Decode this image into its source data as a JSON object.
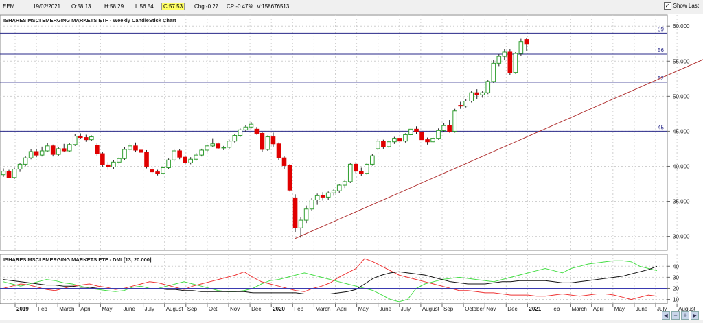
{
  "header": {
    "symbol": "EEM",
    "date": "19/02/2021",
    "open": "O:58.13",
    "high": "H:58.29",
    "low": "L:56.54",
    "close": "C:57.53",
    "change": "Chg:-0.27",
    "change_pct": "CP:-0.47%",
    "volume": "V:158676513",
    "show_last_label": "Show Last",
    "show_last_checked": true
  },
  "colors": {
    "up": "#2f9e2f",
    "down": "#e00000",
    "hline": "#2a2a8a",
    "trend": "#b03030",
    "plus_di": "#44dd44",
    "minus_di": "#ee3333",
    "adx": "#111111",
    "threshold": "#3a3ab0"
  },
  "chart_data": [
    {
      "type": "candlestick",
      "title": "ISHARES MSCI EMERGING MARKETS ETF - Weekly CandleStick Chart",
      "ylim": [
        28,
        61
      ],
      "yticks": [
        "60.000",
        "55.000",
        "50.000",
        "45.000",
        "40.000",
        "35.000",
        "30.000"
      ],
      "ytick_values": [
        60,
        55,
        50,
        45,
        40,
        35,
        30
      ],
      "hlines": [
        {
          "value": 59,
          "label": "59"
        },
        {
          "value": 56,
          "label": "56"
        },
        {
          "value": 52,
          "label": "52"
        },
        {
          "value": 45,
          "label": "45"
        }
      ],
      "trendline": {
        "from": [
          53,
          29.7
        ],
        "to": [
          138,
          59
        ]
      },
      "x_labels": [
        "2019",
        "Feb",
        "March",
        "April",
        "May",
        "June",
        "July",
        "August",
        "Sep",
        "Oct",
        "Nov",
        "Dec",
        "2020",
        "Feb",
        "March",
        "April",
        "May",
        "June",
        "July",
        "August",
        "Sep",
        "October",
        "Nov",
        "Dec",
        "2021",
        "Feb",
        "March",
        "April",
        "May",
        "June",
        "July",
        "August"
      ],
      "candles": [
        [
          38.8,
          39.7,
          38.5,
          39.3
        ],
        [
          39.3,
          39.5,
          38.3,
          38.4
        ],
        [
          38.4,
          39.8,
          38.2,
          39.6
        ],
        [
          39.6,
          40.5,
          39.2,
          40.3
        ],
        [
          40.3,
          41.5,
          40.0,
          41.2
        ],
        [
          41.2,
          42.4,
          41.0,
          42.1
        ],
        [
          42.1,
          42.5,
          41.3,
          41.6
        ],
        [
          41.6,
          42.8,
          41.4,
          42.2
        ],
        [
          42.2,
          43.3,
          42.0,
          42.9
        ],
        [
          42.9,
          43.1,
          41.4,
          41.7
        ],
        [
          41.7,
          42.7,
          41.5,
          42.5
        ],
        [
          42.5,
          43.2,
          42.0,
          42.2
        ],
        [
          42.2,
          43.3,
          42.1,
          43.1
        ],
        [
          43.1,
          44.6,
          42.9,
          44.3
        ],
        [
          44.3,
          44.7,
          43.9,
          44.1
        ],
        [
          44.1,
          44.5,
          43.5,
          43.8
        ],
        [
          43.8,
          44.4,
          43.6,
          44.2
        ],
        [
          43.0,
          43.3,
          41.5,
          41.8
        ],
        [
          41.8,
          42.0,
          39.9,
          40.2
        ],
        [
          40.2,
          40.6,
          39.5,
          39.9
        ],
        [
          39.9,
          40.9,
          39.6,
          40.6
        ],
        [
          40.6,
          41.3,
          40.3,
          41.1
        ],
        [
          41.1,
          42.7,
          40.9,
          42.4
        ],
        [
          42.4,
          43.3,
          42.1,
          42.9
        ],
        [
          42.9,
          43.4,
          42.0,
          42.3
        ],
        [
          42.3,
          42.6,
          41.5,
          42.0
        ],
        [
          42.0,
          42.3,
          39.7,
          40.0
        ],
        [
          39.5,
          40.0,
          38.8,
          39.2
        ],
        [
          39.2,
          39.5,
          38.7,
          39.0
        ],
        [
          39.0,
          40.0,
          38.8,
          39.8
        ],
        [
          39.8,
          41.1,
          39.6,
          40.9
        ],
        [
          40.9,
          42.5,
          40.7,
          42.2
        ],
        [
          42.2,
          42.4,
          41.0,
          41.3
        ],
        [
          41.3,
          41.6,
          40.2,
          40.5
        ],
        [
          40.5,
          41.3,
          40.3,
          41.0
        ],
        [
          41.0,
          41.9,
          40.8,
          41.6
        ],
        [
          41.6,
          42.5,
          41.4,
          42.3
        ],
        [
          42.3,
          43.1,
          42.1,
          42.9
        ],
        [
          42.9,
          44.0,
          42.7,
          43.2
        ],
        [
          43.2,
          43.4,
          42.4,
          42.6
        ],
        [
          42.6,
          42.9,
          42.3,
          42.7
        ],
        [
          42.7,
          43.8,
          42.5,
          43.6
        ],
        [
          43.6,
          44.6,
          43.4,
          44.4
        ],
        [
          44.4,
          45.4,
          44.2,
          45.2
        ],
        [
          45.2,
          45.9,
          44.9,
          45.6
        ],
        [
          45.6,
          46.3,
          45.4,
          46.0
        ],
        [
          45.3,
          45.6,
          44.5,
          44.7
        ],
        [
          44.7,
          44.9,
          42.1,
          42.4
        ],
        [
          42.4,
          44.4,
          42.2,
          44.2
        ],
        [
          44.2,
          44.8,
          42.8,
          43.2
        ],
        [
          43.2,
          43.4,
          40.9,
          41.2
        ],
        [
          41.2,
          41.4,
          39.6,
          40.1
        ],
        [
          40.1,
          40.3,
          36.4,
          36.6
        ],
        [
          35.5,
          36.0,
          30.6,
          31.2
        ],
        [
          31.2,
          32.8,
          29.8,
          32.3
        ],
        [
          32.3,
          34.4,
          31.9,
          33.9
        ],
        [
          33.9,
          35.5,
          33.6,
          35.2
        ],
        [
          35.2,
          36.1,
          34.5,
          35.8
        ],
        [
          35.8,
          36.3,
          35.1,
          35.6
        ],
        [
          35.6,
          36.4,
          35.2,
          36.2
        ],
        [
          36.2,
          36.8,
          35.8,
          36.5
        ],
        [
          36.5,
          37.5,
          36.2,
          37.3
        ],
        [
          37.3,
          38.1,
          36.9,
          37.8
        ],
        [
          37.8,
          40.5,
          37.6,
          40.3
        ],
        [
          40.3,
          40.6,
          39.0,
          39.3
        ],
        [
          39.3,
          39.8,
          38.6,
          39.0
        ],
        [
          39.0,
          40.5,
          38.8,
          40.3
        ],
        [
          40.3,
          41.8,
          40.1,
          41.5
        ],
        [
          42.5,
          43.9,
          42.3,
          43.6
        ],
        [
          43.6,
          43.8,
          42.5,
          42.8
        ],
        [
          42.8,
          43.7,
          42.6,
          43.5
        ],
        [
          43.5,
          44.2,
          43.2,
          44.0
        ],
        [
          44.0,
          44.5,
          43.3,
          43.6
        ],
        [
          43.6,
          44.7,
          43.4,
          44.5
        ],
        [
          44.5,
          45.5,
          44.2,
          45.3
        ],
        [
          45.3,
          45.7,
          44.6,
          44.9
        ],
        [
          44.9,
          45.2,
          43.5,
          43.8
        ],
        [
          43.8,
          44.1,
          43.1,
          43.5
        ],
        [
          43.5,
          44.2,
          43.3,
          44.0
        ],
        [
          44.0,
          45.4,
          43.8,
          45.1
        ],
        [
          45.1,
          46.2,
          44.9,
          45.8
        ],
        [
          45.8,
          46.6,
          44.8,
          45.0
        ],
        [
          45.0,
          48.2,
          44.8,
          47.9
        ],
        [
          48.7,
          49.2,
          48.2,
          48.6
        ],
        [
          48.6,
          49.6,
          48.4,
          49.3
        ],
        [
          49.3,
          50.8,
          49.1,
          50.5
        ],
        [
          50.5,
          51.0,
          49.6,
          50.2
        ],
        [
          50.2,
          50.8,
          49.8,
          50.5
        ],
        [
          50.5,
          52.3,
          50.3,
          52.1
        ],
        [
          52.1,
          55.2,
          51.9,
          54.7
        ],
        [
          54.7,
          56.0,
          54.3,
          55.7
        ],
        [
          55.7,
          56.7,
          55.2,
          56.3
        ],
        [
          56.3,
          56.7,
          53.0,
          53.4
        ],
        [
          53.4,
          56.3,
          53.2,
          56.1
        ],
        [
          56.1,
          58.2,
          55.8,
          57.8
        ],
        [
          58.1,
          58.3,
          56.5,
          57.5
        ]
      ]
    },
    {
      "type": "line",
      "title": "ISHARES MSCI EMERGING MARKETS ETF - DMI [13, 20.000]",
      "ylim": [
        6,
        47
      ],
      "yticks": [
        "40",
        "30",
        "20",
        "10"
      ],
      "ytick_values": [
        40,
        30,
        20,
        10
      ],
      "threshold": 20,
      "series": [
        {
          "key": "plus_di",
          "values": [
            26,
            24,
            22,
            24,
            26,
            28,
            27,
            25,
            24,
            22,
            20,
            19,
            18,
            17,
            18,
            21,
            22,
            20,
            20,
            22,
            24,
            26,
            24,
            22,
            20,
            18,
            17,
            17,
            18,
            20,
            24,
            27,
            28,
            30,
            32,
            34,
            32,
            30,
            28,
            26,
            24,
            22,
            20,
            18,
            14,
            10,
            8,
            10,
            20,
            24,
            26,
            28,
            29,
            30,
            29,
            28,
            27,
            26,
            28,
            30,
            32,
            34,
            36,
            38,
            36,
            34,
            38,
            40,
            42,
            43,
            44,
            45,
            45,
            44,
            40,
            38,
            36
          ]
        },
        {
          "key": "minus_di",
          "values": [
            20,
            22,
            24,
            23,
            21,
            19,
            18,
            20,
            22,
            23,
            24,
            22,
            21,
            19,
            20,
            22,
            24,
            26,
            25,
            23,
            21,
            19,
            22,
            24,
            26,
            28,
            30,
            32,
            35,
            30,
            26,
            24,
            22,
            20,
            18,
            17,
            20,
            22,
            25,
            30,
            34,
            38,
            47,
            44,
            40,
            36,
            32,
            30,
            28,
            26,
            24,
            22,
            20,
            18,
            18,
            17,
            16,
            16,
            15,
            14,
            14,
            14,
            13,
            13,
            14,
            15,
            14,
            13,
            14,
            15,
            15,
            14,
            12,
            10,
            12,
            14,
            13
          ]
        },
        {
          "key": "adx",
          "values": [
            28,
            27,
            26,
            25,
            24,
            23,
            23,
            22,
            22,
            21,
            21,
            20,
            20,
            20,
            20,
            20,
            20,
            20,
            20,
            19,
            19,
            18,
            18,
            17,
            17,
            17,
            17,
            17,
            17,
            16,
            16,
            16,
            16,
            16,
            16,
            15,
            15,
            15,
            15,
            16,
            17,
            19,
            24,
            29,
            32,
            34,
            35,
            34,
            33,
            32,
            30,
            28,
            26,
            25,
            24,
            24,
            24,
            25,
            26,
            26,
            27,
            27,
            27,
            27,
            26,
            25,
            25,
            26,
            27,
            28,
            29,
            30,
            31,
            33,
            35,
            37,
            40
          ]
        }
      ],
      "x_labels": []
    }
  ]
}
